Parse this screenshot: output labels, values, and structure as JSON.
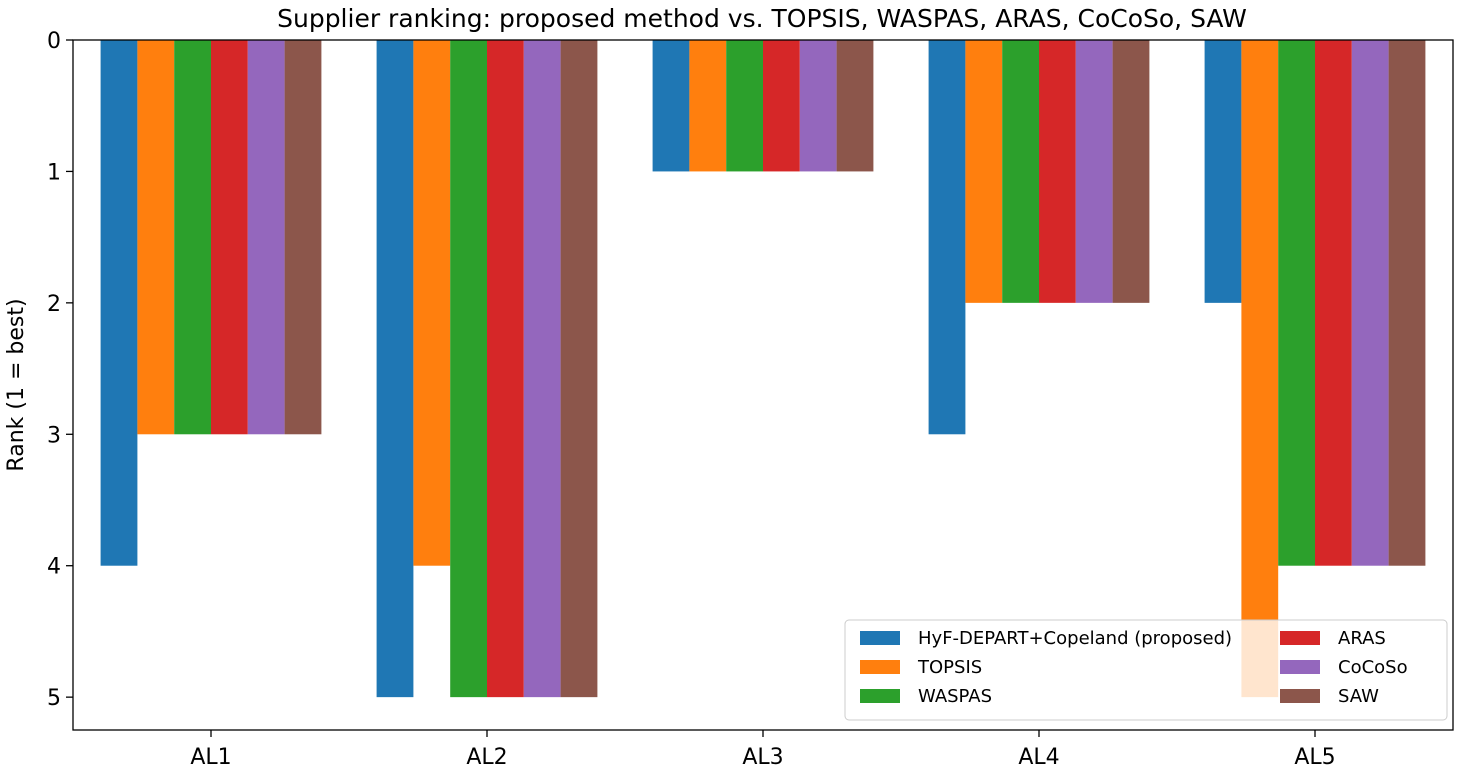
{
  "chart_data": {
    "type": "bar",
    "title": "Supplier ranking: proposed method vs. TOPSIS, WASPAS, ARAS, CoCoSo, SAW",
    "xlabel": "",
    "ylabel": "Rank (1 = best)",
    "ylim": [
      0,
      5.25
    ],
    "y_inverted": true,
    "yticks": [
      "0",
      "1",
      "2",
      "3",
      "4",
      "5"
    ],
    "categories": [
      "AL1",
      "AL2",
      "AL3",
      "AL4",
      "AL5"
    ],
    "legend_position": "lower right",
    "legend_columns": 2,
    "series": [
      {
        "name": "HyF-DEPART+Copeland (proposed)",
        "color": "#1f77b4",
        "values": [
          4,
          5,
          1,
          3,
          2
        ]
      },
      {
        "name": "TOPSIS",
        "color": "#ff7f0e",
        "values": [
          3,
          4,
          1,
          2,
          5
        ]
      },
      {
        "name": "WASPAS",
        "color": "#2ca02c",
        "values": [
          3,
          5,
          1,
          2,
          4
        ]
      },
      {
        "name": "ARAS",
        "color": "#d62728",
        "values": [
          3,
          5,
          1,
          2,
          4
        ]
      },
      {
        "name": "CoCoSo",
        "color": "#9467bd",
        "values": [
          3,
          5,
          1,
          2,
          4
        ]
      },
      {
        "name": "SAW",
        "color": "#8c564b",
        "values": [
          3,
          5,
          1,
          2,
          4
        ]
      }
    ]
  }
}
